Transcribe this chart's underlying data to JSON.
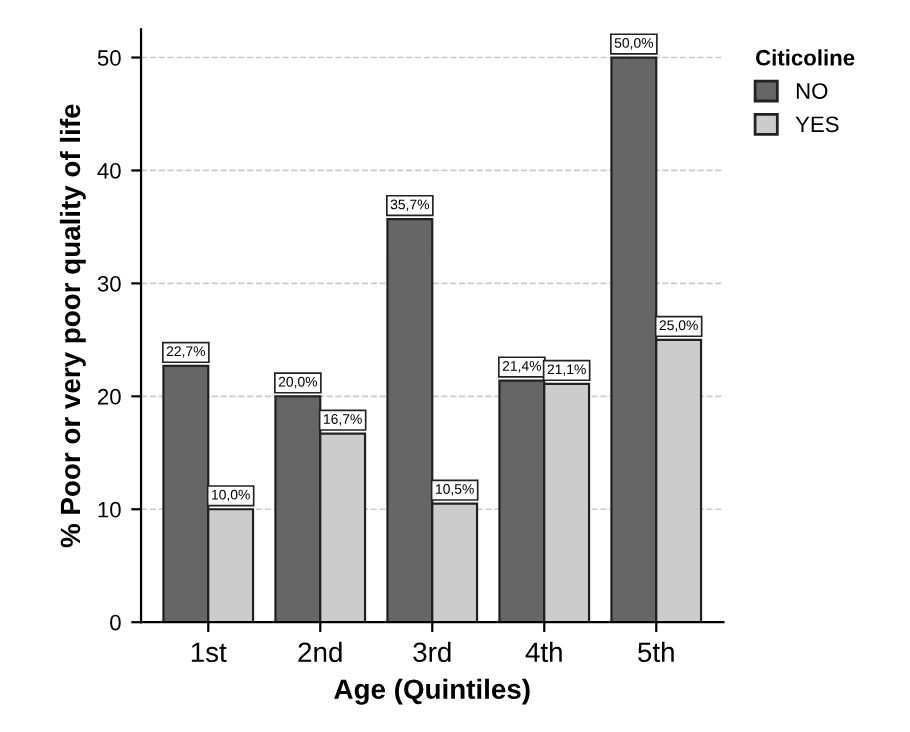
{
  "chart_data": {
    "type": "bar",
    "xlabel": "Age (Quintiles)",
    "ylabel": "% Poor or very poor quality of life",
    "legend_title": "Citicoline",
    "categories": [
      "1st",
      "2nd",
      "3rd",
      "4th",
      "5th"
    ],
    "series": [
      {
        "name": "NO",
        "color": "#666666",
        "values": [
          22.7,
          20.0,
          35.7,
          21.4,
          50.0
        ],
        "value_labels": [
          "22,7%",
          "20,0%",
          "35,7%",
          "21,4%",
          "50,0%"
        ]
      },
      {
        "name": "YES",
        "color": "#cccccc",
        "values": [
          10.0,
          16.7,
          10.5,
          21.1,
          25.0
        ],
        "value_labels": [
          "10,0%",
          "16,7%",
          "10,5%",
          "21,1%",
          "25,0%"
        ]
      }
    ],
    "ylim": [
      0,
      52.5
    ],
    "yticks": [
      0,
      10,
      20,
      30,
      40,
      50
    ],
    "grid": "y",
    "legend": "top right"
  }
}
